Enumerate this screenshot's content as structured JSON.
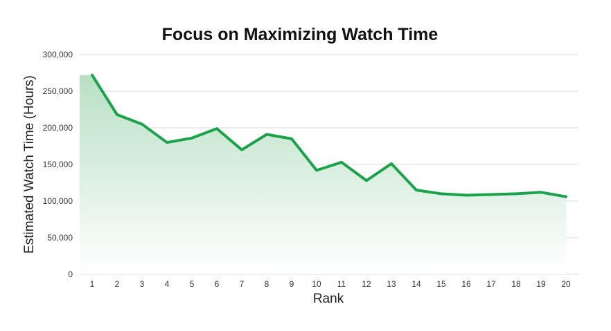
{
  "chart_data": {
    "type": "area",
    "title": "Focus on Maximizing Watch Time",
    "xlabel": "Rank",
    "ylabel": "Estimated Watch Time (Hours)",
    "x": [
      1,
      2,
      3,
      4,
      5,
      6,
      7,
      8,
      9,
      10,
      11,
      12,
      13,
      14,
      15,
      16,
      17,
      18,
      19,
      20
    ],
    "x_tick_labels": [
      "1",
      "2",
      "3",
      "4",
      "5",
      "6",
      "7",
      "8",
      "9",
      "10",
      "11",
      "12",
      "13",
      "14",
      "15",
      "16",
      "17",
      "18",
      "19",
      "20"
    ],
    "y_tick_values": [
      0,
      50000,
      100000,
      150000,
      200000,
      250000,
      300000
    ],
    "y_tick_labels": [
      "0",
      "50,000",
      "100,000",
      "150,000",
      "200,000",
      "250,000",
      "300,000"
    ],
    "ylim": [
      0,
      300000
    ],
    "grid": true,
    "legend": "none",
    "series": [
      {
        "values": [
          272000,
          218000,
          205000,
          180000,
          186000,
          199000,
          170000,
          191000,
          185000,
          142000,
          153000,
          128000,
          151000,
          115000,
          110000,
          108000,
          109000,
          110000,
          112000,
          106000
        ]
      }
    ],
    "colors": {
      "line": "#1aa34a",
      "fill_top": "#b8e0c4",
      "fill_bottom": "#ffffff",
      "grid": "#d9d9d9"
    }
  }
}
